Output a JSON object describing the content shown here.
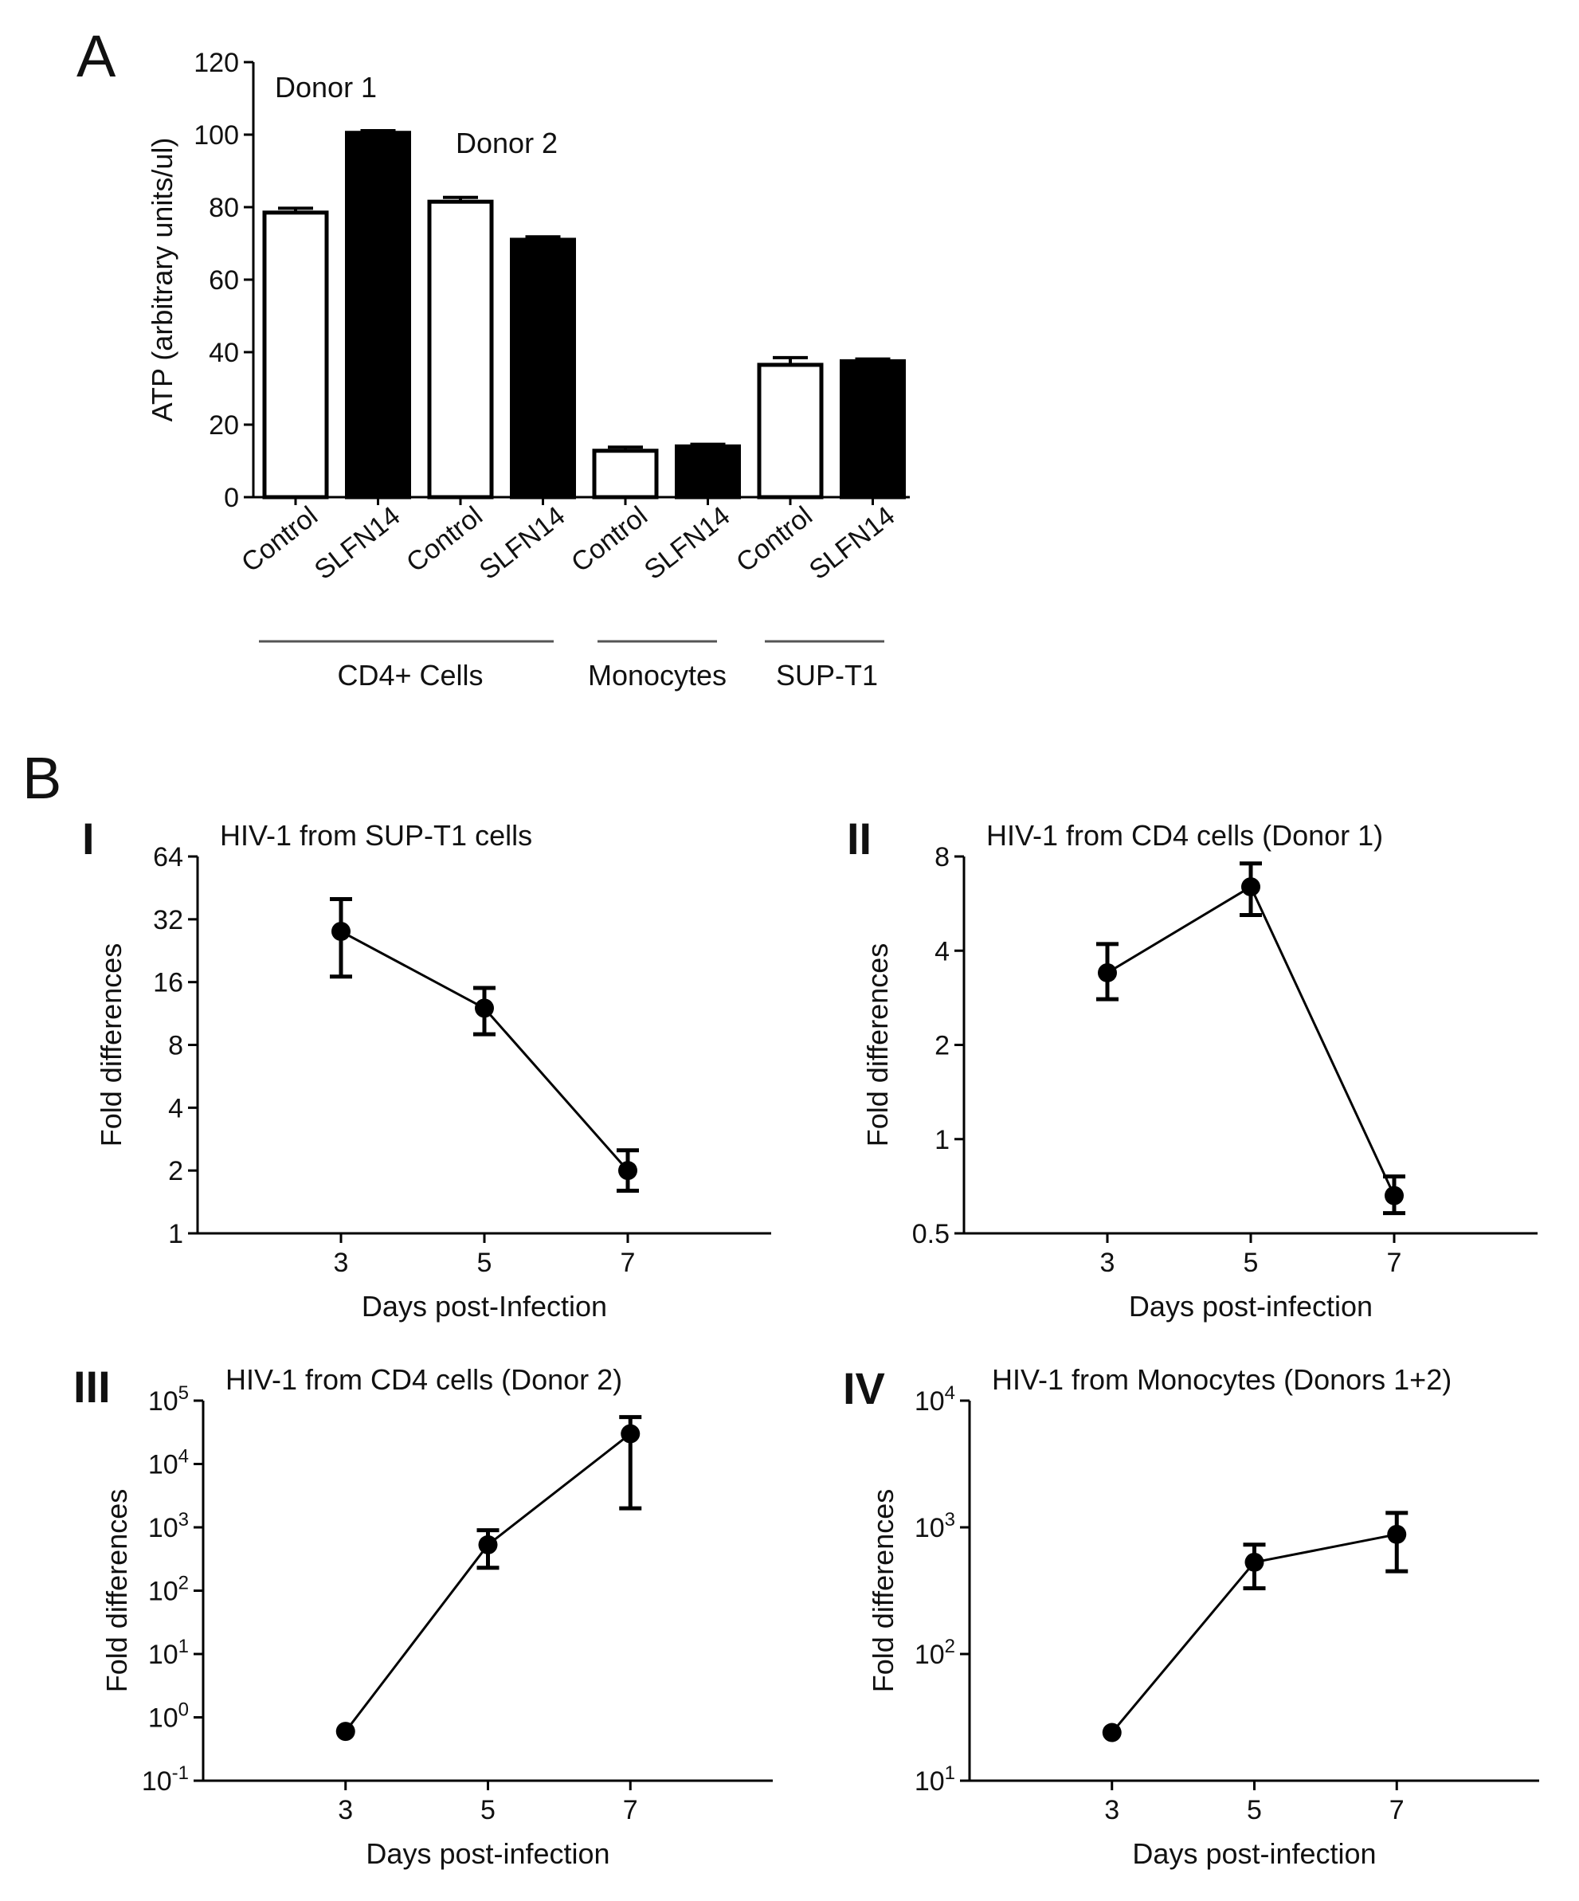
{
  "panel_A": {
    "letter": "A",
    "annotations": [
      "Donor 1",
      "Donor 2"
    ],
    "group_labels": [
      "CD4+ Cells",
      "Monocytes",
      "SUP-T1"
    ],
    "colors": {
      "control": "#ffffff",
      "slfn14": "#000000",
      "ink": "#000000"
    }
  },
  "panel_B": {
    "letter": "B",
    "subpanels": [
      "I",
      "II",
      "III",
      "IV"
    ]
  },
  "chart_data": [
    {
      "type": "bar",
      "panel": "A",
      "ylabel": "ATP (arbitrary units/ul)",
      "ylim": [
        0,
        120
      ],
      "yticks": [
        "0",
        "20",
        "40",
        "60",
        "80",
        "100",
        "120"
      ],
      "categories": [
        "Control",
        "SLFN14",
        "Control",
        "SLFN14",
        "Control",
        "SLFN14",
        "Control",
        "SLFN14"
      ],
      "values": [
        78.5,
        100.5,
        81.5,
        71,
        12.8,
        14,
        36.5,
        37.5
      ],
      "errors": [
        1.2,
        0.6,
        1.2,
        0.8,
        1.0,
        0.6,
        2.0,
        0.6
      ],
      "fill": [
        "white",
        "black",
        "white",
        "black",
        "white",
        "black",
        "white",
        "black"
      ]
    },
    {
      "type": "line",
      "panel": "I",
      "title": "HIV-1 from SUP-T1 cells",
      "xlabel": "Days post-Infection",
      "ylabel": "Fold differences",
      "yscale": "log2",
      "xlim": [
        1,
        9
      ],
      "ylim": [
        1,
        64
      ],
      "xticks": [
        "3",
        "5",
        "7"
      ],
      "yticks": [
        "1",
        "2",
        "4",
        "8",
        "16",
        "32",
        "64"
      ],
      "x": [
        3,
        5,
        7
      ],
      "y": [
        28,
        12,
        2
      ],
      "err_low": [
        17,
        9,
        1.6
      ],
      "err_high": [
        40,
        15,
        2.5
      ]
    },
    {
      "type": "line",
      "panel": "II",
      "title": "HIV-1 from CD4 cells (Donor 1)",
      "xlabel": "Days post-infection",
      "ylabel": "Fold differences",
      "yscale": "log2",
      "xlim": [
        1,
        9
      ],
      "ylim": [
        0.5,
        8
      ],
      "xticks": [
        "3",
        "5",
        "7"
      ],
      "yticks": [
        "0.5",
        "1",
        "2",
        "4",
        "8"
      ],
      "x": [
        3,
        5,
        7
      ],
      "y": [
        3.4,
        6.4,
        0.66
      ],
      "err_low": [
        2.8,
        5.2,
        0.58
      ],
      "err_high": [
        4.2,
        7.6,
        0.76
      ]
    },
    {
      "type": "line",
      "panel": "III",
      "title": "HIV-1 from CD4 cells (Donor 2)",
      "xlabel": "Days post-infection",
      "ylabel": "Fold differences",
      "yscale": "log10",
      "xlim": [
        1,
        9
      ],
      "ylim": [
        0.1,
        100000
      ],
      "xticks": [
        "3",
        "5",
        "7"
      ],
      "yticks_base": [
        "10",
        "10",
        "10",
        "10",
        "10",
        "10",
        "10"
      ],
      "yticks_exp": [
        "-1",
        "0",
        "1",
        "2",
        "3",
        "4",
        "5"
      ],
      "x": [
        3,
        5,
        7
      ],
      "y": [
        0.6,
        530,
        30000
      ],
      "err_low": [
        0.6,
        230,
        2000
      ],
      "err_high": [
        0.6,
        900,
        55000
      ]
    },
    {
      "type": "line",
      "panel": "IV",
      "title": "HIV-1 from Monocytes (Donors 1+2)",
      "xlabel": "Days post-infection",
      "ylabel": "Fold differences",
      "yscale": "log10",
      "xlim": [
        1,
        9
      ],
      "ylim": [
        10,
        10000
      ],
      "xticks": [
        "3",
        "5",
        "7"
      ],
      "yticks_base": [
        "10",
        "10",
        "10",
        "10"
      ],
      "yticks_exp": [
        "1",
        "2",
        "3",
        "4"
      ],
      "x": [
        3,
        5,
        7
      ],
      "y": [
        24,
        530,
        880
      ],
      "err_low": [
        24,
        330,
        450
      ],
      "err_high": [
        24,
        730,
        1300
      ]
    }
  ]
}
